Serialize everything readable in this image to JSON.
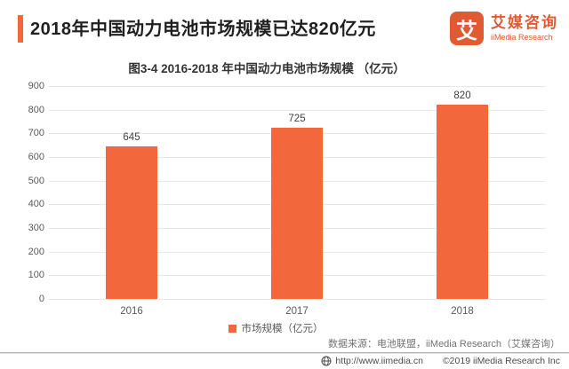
{
  "header": {
    "title": "2018年中国动力电池市场规模已达820亿元"
  },
  "logo": {
    "glyph": "艾",
    "name_cn": "艾媒咨询",
    "name_en": "iiMedia Research"
  },
  "chart_data": {
    "type": "bar",
    "title": "图3-4 2016-2018 年中国动力电池市场规模 （亿元）",
    "categories": [
      "2016",
      "2017",
      "2018"
    ],
    "values": [
      645,
      725,
      820
    ],
    "series_name": "市场规模（亿元）",
    "xlabel": "",
    "ylabel": "",
    "ylim": [
      0,
      900
    ],
    "ytick_step": 100,
    "grid": true,
    "legend_position": "bottom",
    "bar_color": "#F2683C",
    "gridline_color": "#e8e8e8"
  },
  "notes": {
    "source": "数据来源：电池联盟，iiMedia Research（艾媒咨询）"
  },
  "footer": {
    "url": "http://www.iimedia.cn",
    "copyright": "©2019  iiMedia Research  Inc"
  },
  "colors": {
    "accent_orange": "#F2683C",
    "logo_orange": "#E05A33"
  }
}
